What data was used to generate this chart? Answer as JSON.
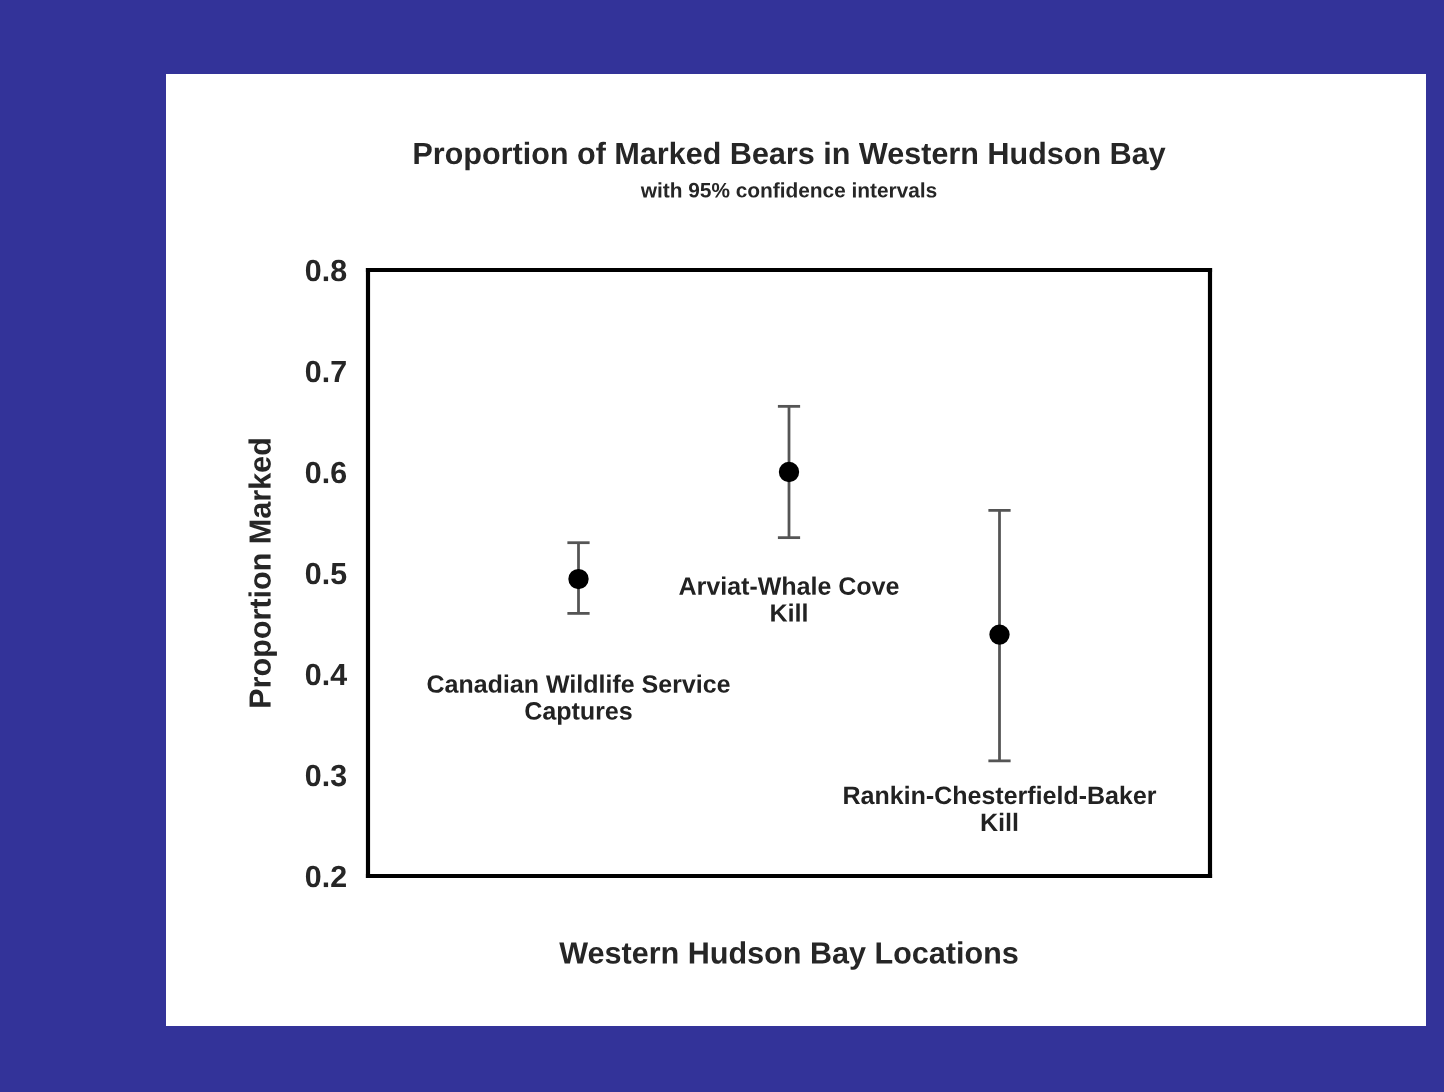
{
  "chart_data": {
    "type": "scatter",
    "title": "Proportion of Marked Bears in Western Hudson Bay",
    "subtitle": "with 95% confidence intervals",
    "xlabel": "Western Hudson Bay Locations",
    "ylabel": "Proportion Marked",
    "categories": [
      "Canadian Wildlife Service\nCaptures",
      "Arviat-Whale Cove\nKill",
      "Rankin-Chesterfield-Baker\nKill"
    ],
    "values": [
      0.494,
      0.6,
      0.439
    ],
    "errors": [
      [
        0.46,
        0.53
      ],
      [
        0.535,
        0.665
      ],
      [
        0.314,
        0.562
      ]
    ],
    "color": "#000000",
    "marker": "circle",
    "ylim": [
      0.2,
      0.8
    ],
    "yticks": [
      0.2,
      0.3,
      0.4,
      0.5,
      0.6,
      0.7,
      0.8
    ],
    "grid": false,
    "legend": false
  }
}
